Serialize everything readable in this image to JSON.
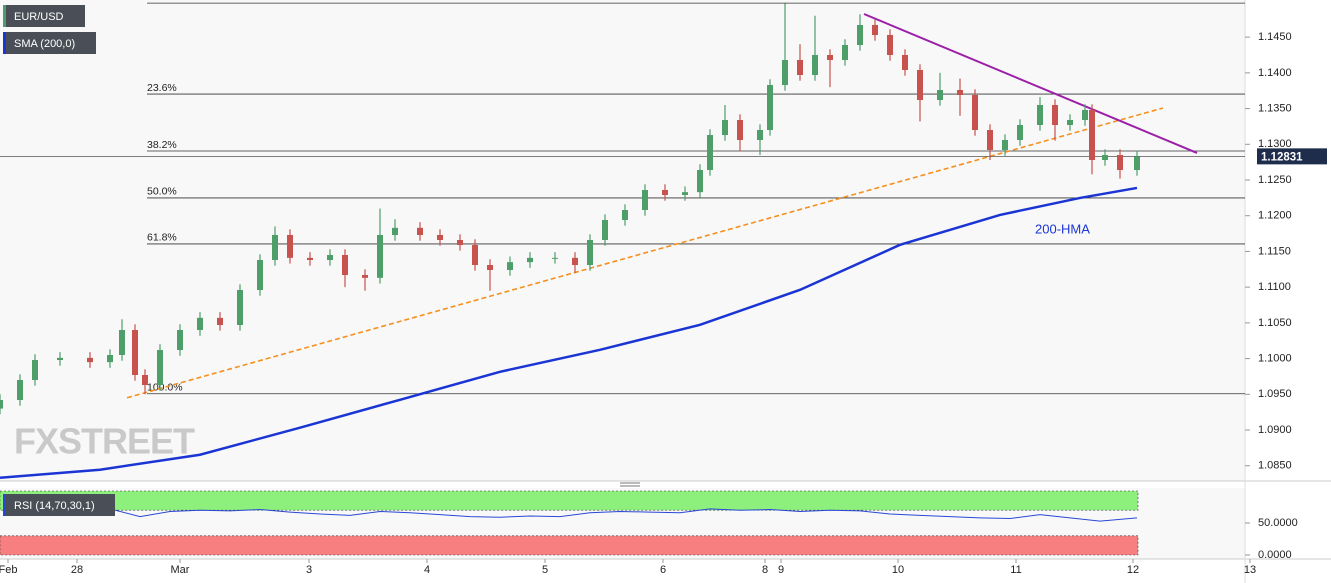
{
  "chart_data": {
    "type": "candlestick",
    "symbol": "EUR/USD",
    "indicator": "SMA (200,0)",
    "xlim": [
      0,
      124.5
    ],
    "xticks": [
      {
        "value": 0.8,
        "label": "Feb"
      },
      {
        "value": 7.7,
        "label": "28"
      },
      {
        "value": 18,
        "label": "Mar"
      },
      {
        "value": 30.9,
        "label": "3"
      },
      {
        "value": 42.7,
        "label": "4"
      },
      {
        "value": 54.5,
        "label": "5"
      },
      {
        "value": 66.3,
        "label": "6"
      },
      {
        "value": 76.5,
        "label": "8"
      },
      {
        "value": 78.1,
        "label": "9"
      },
      {
        "value": 89.8,
        "label": "10"
      },
      {
        "value": 101.6,
        "label": "11"
      },
      {
        "value": 113.3,
        "label": "12"
      },
      {
        "value": 125,
        "label": "13"
      }
    ],
    "ylim": [
      1.083,
      1.1502
    ],
    "yticks": [
      {
        "value": 1.085,
        "label": "1.0850"
      },
      {
        "value": 1.09,
        "label": "1.0900"
      },
      {
        "value": 1.095,
        "label": "1.0950"
      },
      {
        "value": 1.1,
        "label": "1.1000"
      },
      {
        "value": 1.105,
        "label": "1.1050"
      },
      {
        "value": 1.11,
        "label": "1.1100"
      },
      {
        "value": 1.115,
        "label": "1.1150"
      },
      {
        "value": 1.12,
        "label": "1.1200"
      },
      {
        "value": 1.125,
        "label": "1.1250"
      },
      {
        "value": 1.13,
        "label": "1.1300"
      },
      {
        "value": 1.135,
        "label": "1.1350"
      },
      {
        "value": 1.14,
        "label": "1.1400"
      },
      {
        "value": 1.145,
        "label": "1.1450"
      }
    ],
    "up_color": "#4e9e6a",
    "down_color": "#c8524e",
    "candle_fields": [
      "x",
      "open",
      "high",
      "low",
      "close"
    ],
    "candles": [
      [
        0,
        1.093,
        1.095,
        1.0922,
        1.0942
      ],
      [
        2,
        1.0942,
        1.0978,
        1.0934,
        1.097
      ],
      [
        3.5,
        1.097,
        1.1006,
        1.0962,
        1.0998
      ],
      [
        6,
        1.0998,
        1.1009,
        1.099,
        1.1001
      ],
      [
        9,
        1.1001,
        1.1009,
        1.0987,
        1.0995
      ],
      [
        11,
        1.0995,
        1.1013,
        1.0987,
        1.1005
      ],
      [
        12.2,
        1.1005,
        1.1055,
        1.0997,
        1.104
      ],
      [
        13.5,
        1.104,
        1.1048,
        1.0969,
        1.0977
      ],
      [
        14.5,
        1.0977,
        1.0985,
        1.095,
        1.0963
      ],
      [
        16,
        1.0963,
        1.102,
        1.0955,
        1.1012
      ],
      [
        18,
        1.1012,
        1.1048,
        1.1004,
        1.104
      ],
      [
        20,
        1.104,
        1.1065,
        1.1032,
        1.1057
      ],
      [
        22,
        1.1057,
        1.1065,
        1.1039,
        1.1047
      ],
      [
        24,
        1.1047,
        1.1104,
        1.1039,
        1.1096
      ],
      [
        26,
        1.1096,
        1.1146,
        1.1088,
        1.1138
      ],
      [
        27.5,
        1.1138,
        1.1185,
        1.113,
        1.1173
      ],
      [
        29,
        1.1173,
        1.1181,
        1.1133,
        1.1141
      ],
      [
        31,
        1.1141,
        1.1149,
        1.113,
        1.1138
      ],
      [
        33,
        1.1138,
        1.1153,
        1.113,
        1.1145
      ],
      [
        34.5,
        1.1145,
        1.1153,
        1.11,
        1.1117
      ],
      [
        36.5,
        1.1117,
        1.1125,
        1.1095,
        1.1113
      ],
      [
        38,
        1.1113,
        1.121,
        1.1105,
        1.1173
      ],
      [
        39.5,
        1.1173,
        1.1195,
        1.1165,
        1.1183
      ],
      [
        42,
        1.1183,
        1.1191,
        1.1165,
        1.1173
      ],
      [
        44,
        1.1173,
        1.1181,
        1.1158,
        1.1166
      ],
      [
        46,
        1.1166,
        1.1174,
        1.1151,
        1.1159
      ],
      [
        47.5,
        1.1159,
        1.1167,
        1.1123,
        1.1131
      ],
      [
        49,
        1.1131,
        1.1139,
        1.1095,
        1.1124
      ],
      [
        51,
        1.1124,
        1.1143,
        1.1116,
        1.1135
      ],
      [
        53,
        1.1135,
        1.1149,
        1.1127,
        1.1141
      ],
      [
        55.5,
        1.1141,
        1.1149,
        1.1133,
        1.1141
      ],
      [
        57.5,
        1.1141,
        1.1149,
        1.112,
        1.1131
      ],
      [
        59,
        1.1131,
        1.1174,
        1.1123,
        1.1166
      ],
      [
        60.5,
        1.1166,
        1.1202,
        1.1158,
        1.1194
      ],
      [
        62.5,
        1.1194,
        1.1216,
        1.1186,
        1.1208
      ],
      [
        64.5,
        1.1208,
        1.1244,
        1.12,
        1.1236
      ],
      [
        66.5,
        1.1236,
        1.1244,
        1.1221,
        1.1229
      ],
      [
        68.5,
        1.1229,
        1.1241,
        1.1221,
        1.1233
      ],
      [
        70,
        1.1233,
        1.1272,
        1.1225,
        1.1264
      ],
      [
        71,
        1.1264,
        1.1321,
        1.1256,
        1.1313
      ],
      [
        72.5,
        1.1313,
        1.1355,
        1.1305,
        1.1334
      ],
      [
        74,
        1.1334,
        1.1342,
        1.129,
        1.1306
      ],
      [
        76,
        1.1306,
        1.1328,
        1.1285,
        1.132
      ],
      [
        77,
        1.132,
        1.1391,
        1.1312,
        1.1383
      ],
      [
        78.5,
        1.1383,
        1.1497,
        1.1375,
        1.1418
      ],
      [
        80,
        1.1418,
        1.144,
        1.1389,
        1.1397
      ],
      [
        81.5,
        1.1397,
        1.148,
        1.1389,
        1.1425
      ],
      [
        83,
        1.1425,
        1.1433,
        1.138,
        1.1418
      ],
      [
        84.5,
        1.1418,
        1.1447,
        1.141,
        1.1439
      ],
      [
        86,
        1.1439,
        1.1482,
        1.1431,
        1.1467
      ],
      [
        87.5,
        1.1467,
        1.1475,
        1.1445,
        1.1453
      ],
      [
        89,
        1.1453,
        1.1461,
        1.1417,
        1.1425
      ],
      [
        90.5,
        1.1425,
        1.1433,
        1.1396,
        1.1404
      ],
      [
        92,
        1.1404,
        1.1412,
        1.1332,
        1.1362
      ],
      [
        94,
        1.1362,
        1.14,
        1.1354,
        1.1376
      ],
      [
        96,
        1.1376,
        1.1392,
        1.134,
        1.1369
      ],
      [
        97.5,
        1.1369,
        1.1377,
        1.1312,
        1.132
      ],
      [
        99,
        1.132,
        1.1328,
        1.1278,
        1.1292
      ],
      [
        100.5,
        1.1292,
        1.1314,
        1.1284,
        1.1306
      ],
      [
        102,
        1.1306,
        1.1335,
        1.1298,
        1.1327
      ],
      [
        104,
        1.1327,
        1.1366,
        1.1319,
        1.1355
      ],
      [
        105.5,
        1.1355,
        1.1363,
        1.1305,
        1.1327
      ],
      [
        107,
        1.1327,
        1.1342,
        1.1319,
        1.1334
      ],
      [
        108.5,
        1.1334,
        1.1356,
        1.1326,
        1.1348
      ],
      [
        109.2,
        1.1348,
        1.1356,
        1.1258,
        1.1278
      ],
      [
        110.5,
        1.1278,
        1.1293,
        1.127,
        1.1285
      ],
      [
        112,
        1.1285,
        1.1293,
        1.1252,
        1.1264
      ],
      [
        113.7,
        1.1264,
        1.1291,
        1.1256,
        1.1283
      ]
    ],
    "last_price": 1.12831,
    "last_price_color": "#1f2d4d",
    "fib_start_x": 14.7,
    "fib_levels": [
      {
        "label": null,
        "value": 1.14976
      },
      {
        "label": "23.6%",
        "value": 1.13703
      },
      {
        "label": "38.2%",
        "value": 1.12906
      },
      {
        "label": "50.0%",
        "value": 1.12249
      },
      {
        "label": "61.8%",
        "value": 1.11605
      },
      {
        "label": "100.0%",
        "value": 1.09507
      }
    ],
    "resistance_line": {
      "color": "#9b1fa8",
      "x": [
        86.4,
        119.7
      ],
      "values": [
        1.14824,
        1.12879
      ]
    },
    "support_line": {
      "color": "#f5901e",
      "x": [
        12.7,
        116.3
      ],
      "values": [
        1.09451,
        1.13508
      ]
    },
    "hma": {
      "name": "200-HMA",
      "color": "#1a35d4",
      "x": [
        0,
        10,
        20,
        30,
        40,
        50,
        60,
        70,
        80,
        90,
        100,
        108,
        113.7
      ],
      "values": [
        1.08332,
        1.08444,
        1.08654,
        1.09032,
        1.09423,
        1.09815,
        1.10123,
        1.10473,
        1.10962,
        1.11592,
        1.12011,
        1.12249,
        1.12389
      ]
    },
    "watermark": "FXSTREET",
    "rsi": {
      "name": "RSI (14,70,30,1)",
      "color": "#2947d6",
      "ylim": [
        0,
        100
      ],
      "yticks": [
        {
          "value": 50,
          "label": "50.0000"
        },
        {
          "value": 0,
          "label": "0.0000"
        }
      ],
      "bands": [
        {
          "from": 70,
          "to": 100,
          "color": "#8ef07c"
        },
        {
          "from": 0,
          "to": 30,
          "color": "#f77f7f"
        }
      ],
      "x": [
        11,
        14,
        17,
        20,
        23,
        26,
        29,
        32,
        35,
        38,
        41,
        44,
        47,
        50,
        53,
        56,
        59,
        62,
        65,
        68,
        71,
        74,
        77,
        80,
        83,
        86,
        89,
        92,
        95,
        98,
        101,
        104,
        107,
        110,
        113.7
      ],
      "values": [
        72,
        60,
        68,
        70,
        69,
        71,
        67,
        64,
        62,
        68,
        66,
        63,
        60,
        59,
        61,
        60,
        66,
        68,
        67,
        66,
        72,
        70,
        71,
        68,
        70,
        69,
        64,
        62,
        60,
        58,
        57,
        63,
        58,
        53,
        58
      ]
    }
  }
}
